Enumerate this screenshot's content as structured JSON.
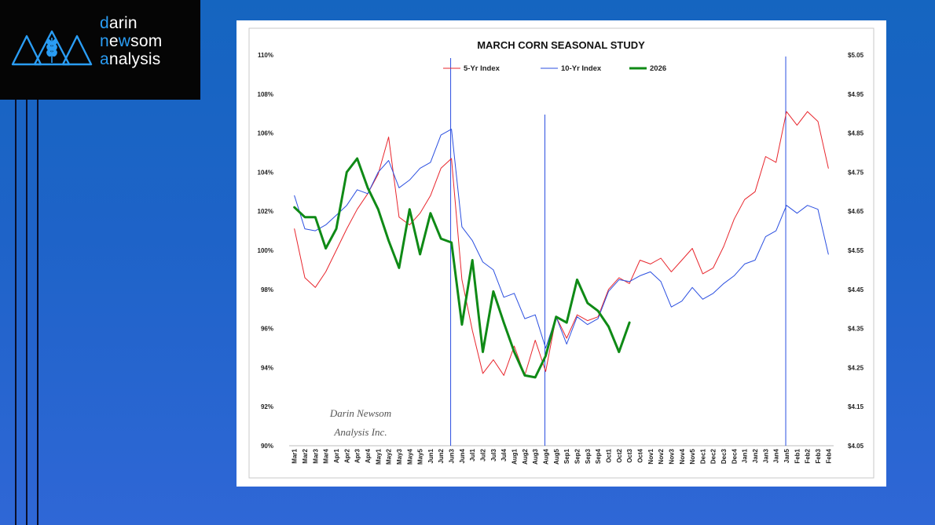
{
  "brand": {
    "line1_first": "d",
    "line1_rest": "arin",
    "line2_first": "n",
    "line2_mid": "e",
    "line2_hl": "w",
    "line2_rest": "som",
    "line3_first": "a",
    "line3_rest": "nalysis",
    "accent": "#2a9df4"
  },
  "chart_data": {
    "type": "line",
    "title": "MARCH CORN SEASONAL STUDY",
    "watermark_line1": "Darin Newsom",
    "watermark_line2": "Analysis Inc.",
    "y_left": {
      "min": 90,
      "max": 110,
      "ticks": [
        "90%",
        "92%",
        "94%",
        "96%",
        "98%",
        "100%",
        "102%",
        "104%",
        "106%",
        "108%",
        "110%"
      ]
    },
    "y_right": {
      "min": 4.05,
      "max": 5.05,
      "ticks": [
        "$4.05",
        "$4.15",
        "$4.25",
        "$4.35",
        "$4.45",
        "$4.55",
        "$4.65",
        "$4.75",
        "$4.85",
        "$4.95",
        "$5.05"
      ]
    },
    "categories": [
      "Mar1",
      "Mar2",
      "Mar3",
      "Mar4",
      "Apr1",
      "Apr2",
      "Apr3",
      "Apr4",
      "May1",
      "May2",
      "May3",
      "May4",
      "May5",
      "Jun1",
      "Jun2",
      "Jun3",
      "Jun4",
      "Jul1",
      "Jul2",
      "Jul3",
      "Jul4",
      "Aug1",
      "Aug2",
      "Aug3",
      "Aug4",
      "Aug5",
      "Sep1",
      "Sep2",
      "Sep3",
      "Sep4",
      "Oct1",
      "Oct2",
      "Oct3",
      "Oct4",
      "Nov1",
      "Nov2",
      "Nov3",
      "Nov4",
      "Nov5",
      "Dec1",
      "Dec2",
      "Dec3",
      "Dec4",
      "Jan1",
      "Jan2",
      "Jan3",
      "Jan4",
      "Jan5",
      "Feb1",
      "Feb2",
      "Feb3",
      "Feb4"
    ],
    "series": [
      {
        "name": "5-Yr Index",
        "color": "#e8262d",
        "width": 1,
        "axis": "left",
        "values": [
          101.1,
          98.6,
          98.1,
          98.9,
          100.0,
          101.1,
          102.1,
          102.9,
          103.9,
          105.8,
          101.7,
          101.3,
          101.9,
          102.8,
          104.2,
          104.7,
          98.5,
          95.9,
          93.7,
          94.4,
          93.6,
          95.1,
          93.6,
          95.4,
          93.8,
          96.6,
          95.5,
          96.7,
          96.4,
          96.6,
          98.0,
          98.6,
          98.3,
          99.5,
          99.3,
          99.6,
          98.9,
          99.5,
          100.1,
          98.8,
          99.1,
          100.2,
          101.6,
          102.6,
          103.0,
          104.8,
          104.5,
          107.1,
          106.4,
          107.1,
          106.6,
          104.2
        ]
      },
      {
        "name": "10-Yr Index",
        "color": "#2b4fe0",
        "width": 1,
        "axis": "left",
        "values": [
          102.8,
          101.1,
          101.0,
          101.3,
          101.8,
          102.3,
          103.1,
          102.9,
          104.0,
          104.6,
          103.2,
          103.6,
          104.2,
          104.5,
          105.9,
          106.2,
          101.2,
          100.5,
          99.4,
          99.0,
          97.6,
          97.8,
          96.5,
          96.7,
          95.0,
          96.6,
          95.2,
          96.6,
          96.2,
          96.5,
          97.9,
          98.5,
          98.4,
          98.7,
          98.9,
          98.4,
          97.1,
          97.4,
          98.1,
          97.5,
          97.8,
          98.3,
          98.7,
          99.3,
          99.5,
          100.7,
          101.0,
          102.3,
          101.9,
          102.3,
          102.1,
          99.8
        ]
      },
      {
        "name": "2026",
        "color": "#0f8a16",
        "width": 3,
        "axis": "left",
        "values": [
          102.2,
          101.7,
          101.7,
          100.1,
          101.1,
          104.0,
          104.7,
          103.2,
          102.1,
          100.5,
          99.1,
          102.1,
          99.8,
          101.9,
          100.6,
          100.4,
          96.2,
          99.5,
          94.8,
          97.9,
          96.3,
          94.8,
          93.6,
          93.5,
          94.6,
          96.6,
          96.3,
          98.5,
          97.3,
          96.9,
          96.1,
          94.8,
          96.3,
          null,
          null,
          null,
          null,
          null,
          null,
          null,
          null,
          null,
          null,
          null,
          null,
          null,
          null,
          null,
          null,
          null,
          null,
          null
        ]
      }
    ],
    "marker_lines": [
      "Jun3",
      "Aug4",
      "Jan5"
    ],
    "marker_color": "#2b4fe0",
    "legend_position": "top-center"
  }
}
